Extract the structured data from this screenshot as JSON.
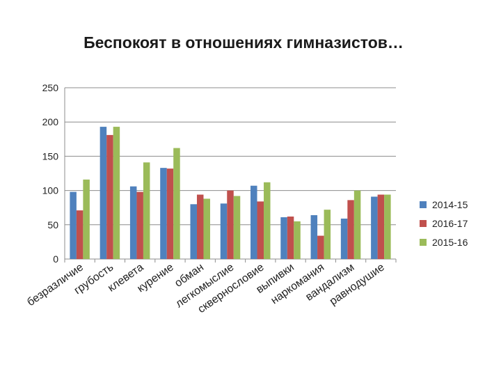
{
  "chart_data": {
    "type": "bar",
    "title": "Беспокоят в отношениях гимназистов…",
    "categories": [
      "безразличие",
      "грубость",
      "клевета",
      "курение",
      "обман",
      "легкомыслие",
      "сквернословие",
      "выпивки",
      "наркомания",
      "вандализм",
      "равнодушие"
    ],
    "series": [
      {
        "name": "2014-15",
        "color": "#4f81bd",
        "values": [
          98,
          193,
          106,
          133,
          80,
          81,
          107,
          61,
          64,
          59,
          91
        ]
      },
      {
        "name": "2016-17",
        "color": "#c0504d",
        "values": [
          71,
          181,
          98,
          132,
          94,
          100,
          84,
          62,
          34,
          86,
          94
        ]
      },
      {
        "name": "2015-16",
        "color": "#9bbb59",
        "values": [
          116,
          193,
          141,
          162,
          88,
          92,
          112,
          55,
          72,
          100,
          94
        ]
      }
    ],
    "yticks": [
      "0",
      "50",
      "100",
      "150",
      "200",
      "250"
    ],
    "ylim": [
      0,
      250
    ],
    "grid": true,
    "legend_position": "right"
  }
}
